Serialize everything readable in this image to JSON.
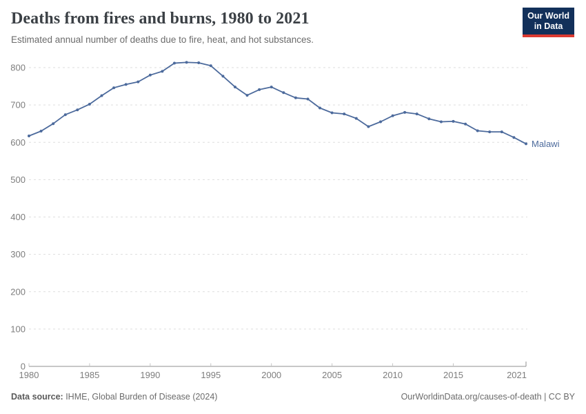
{
  "header": {
    "title": "Deaths from fires and burns, 1980 to 2021",
    "subtitle": "Estimated annual number of deaths due to fire, heat, and hot substances."
  },
  "logo": {
    "line1": "Our World",
    "line2": "in Data",
    "background": "#12305a",
    "stripe": "#dc3a31"
  },
  "chart_data": {
    "type": "line",
    "title": "Deaths from fires and burns, 1980 to 2021",
    "subtitle": "Estimated annual number of deaths due to fire, heat, and hot substances.",
    "xlabel": "",
    "ylabel": "",
    "xlim": [
      1980,
      2021
    ],
    "ylim": [
      0,
      800
    ],
    "grid": "horizontal-dashed",
    "legend_position": "end-of-line-label",
    "x_ticks": [
      1980,
      1985,
      1990,
      1995,
      2000,
      2005,
      2010,
      2015,
      2021
    ],
    "y_ticks": [
      0,
      100,
      200,
      300,
      400,
      500,
      600,
      700,
      800
    ],
    "x": [
      1980,
      1981,
      1982,
      1983,
      1984,
      1985,
      1986,
      1987,
      1988,
      1989,
      1990,
      1991,
      1992,
      1993,
      1994,
      1995,
      1996,
      1997,
      1998,
      1999,
      2000,
      2001,
      2002,
      2003,
      2004,
      2005,
      2006,
      2007,
      2008,
      2009,
      2010,
      2011,
      2012,
      2013,
      2014,
      2015,
      2016,
      2017,
      2018,
      2019,
      2020,
      2021
    ],
    "series": [
      {
        "name": "Malawi",
        "color": "#4c6a9c",
        "values": [
          617,
          630,
          650,
          674,
          687,
          702,
          725,
          746,
          755,
          762,
          780,
          790,
          812,
          814,
          813,
          805,
          777,
          748,
          726,
          741,
          748,
          733,
          719,
          716,
          692,
          679,
          676,
          664,
          642,
          655,
          671,
          680,
          676,
          663,
          655,
          656,
          649,
          631,
          628,
          628,
          613,
          596
        ]
      }
    ],
    "colors": {
      "line": "#4c6a9c",
      "gridline": "#dddddd",
      "axis": "#8f8f8f",
      "tick_mark": "#c4c4c4",
      "tick_label": "#7d7d7d"
    }
  },
  "footer": {
    "source_label": "Data source:",
    "source_text": " IHME, Global Burden of Disease (2024)",
    "link": "OurWorldinData.org/causes-of-death | CC BY"
  }
}
